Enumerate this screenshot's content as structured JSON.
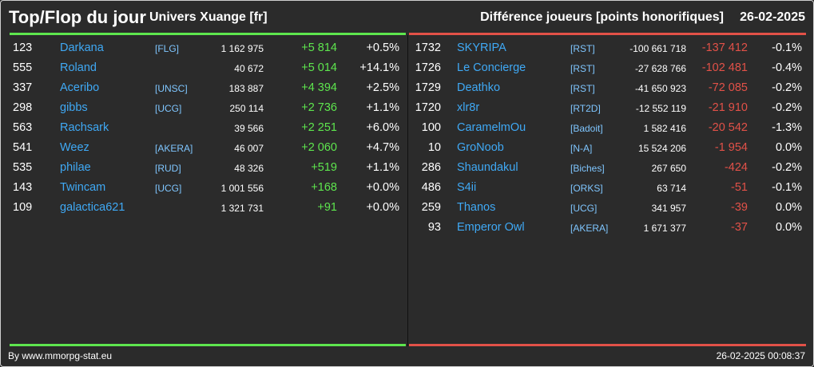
{
  "header": {
    "title": "Top/Flop du jour",
    "subtitle": "Univers Xuange [fr]",
    "metric": "Différence joueurs [points honorifiques]",
    "date": "26-02-2025"
  },
  "colors": {
    "positive": "#5ee64e",
    "negative": "#e25148",
    "name": "#3fa9f5"
  },
  "top": [
    {
      "rank": "123",
      "name": "Darkana",
      "alliance": "[FLG]",
      "points": "1 162 975",
      "delta": "+5 814",
      "pct": "+0.5%"
    },
    {
      "rank": "555",
      "name": "Roland",
      "alliance": "",
      "points": "40 672",
      "delta": "+5 014",
      "pct": "+14.1%"
    },
    {
      "rank": "337",
      "name": "Aceribo",
      "alliance": "[UNSC]",
      "points": "183 887",
      "delta": "+4 394",
      "pct": "+2.5%"
    },
    {
      "rank": "298",
      "name": "gibbs",
      "alliance": "[UCG]",
      "points": "250 114",
      "delta": "+2 736",
      "pct": "+1.1%"
    },
    {
      "rank": "563",
      "name": "Rachsark",
      "alliance": "",
      "points": "39 566",
      "delta": "+2 251",
      "pct": "+6.0%"
    },
    {
      "rank": "541",
      "name": "Weez",
      "alliance": "[AKERA]",
      "points": "46 007",
      "delta": "+2 060",
      "pct": "+4.7%"
    },
    {
      "rank": "535",
      "name": "philae",
      "alliance": "[RUD]",
      "points": "48 326",
      "delta": "+519",
      "pct": "+1.1%"
    },
    {
      "rank": "143",
      "name": "Twincam",
      "alliance": "[UCG]",
      "points": "1 001 556",
      "delta": "+168",
      "pct": "+0.0%"
    },
    {
      "rank": "109",
      "name": "galactica621",
      "alliance": "",
      "points": "1 321 731",
      "delta": "+91",
      "pct": "+0.0%"
    }
  ],
  "flop": [
    {
      "rank": "1732",
      "name": "SKYRIPA",
      "alliance": "[RST]",
      "points": "-100 661 718",
      "delta": "-137 412",
      "pct": "-0.1%"
    },
    {
      "rank": "1726",
      "name": "Le Concierge",
      "alliance": "[RST]",
      "points": "-27 628 766",
      "delta": "-102 481",
      "pct": "-0.4%"
    },
    {
      "rank": "1729",
      "name": "Deathko",
      "alliance": "[RST]",
      "points": "-41 650 923",
      "delta": "-72 085",
      "pct": "-0.2%"
    },
    {
      "rank": "1720",
      "name": "xlr8r",
      "alliance": "[RT2D]",
      "points": "-12 552 119",
      "delta": "-21 910",
      "pct": "-0.2%"
    },
    {
      "rank": "100",
      "name": "CaramelmOu",
      "alliance": "[Badoit]",
      "points": "1 582 416",
      "delta": "-20 542",
      "pct": "-1.3%"
    },
    {
      "rank": "10",
      "name": "GroNoob",
      "alliance": "[N-A]",
      "points": "15 524 206",
      "delta": "-1 954",
      "pct": "0.0%"
    },
    {
      "rank": "286",
      "name": "Shaundakul",
      "alliance": "[Biches]",
      "points": "267 650",
      "delta": "-424",
      "pct": "-0.2%"
    },
    {
      "rank": "486",
      "name": "S4ii",
      "alliance": "[ORKS]",
      "points": "63 714",
      "delta": "-51",
      "pct": "-0.1%"
    },
    {
      "rank": "259",
      "name": "Thanos",
      "alliance": "[UCG]",
      "points": "341 957",
      "delta": "-39",
      "pct": "0.0%"
    },
    {
      "rank": "93",
      "name": "Emperor Owl",
      "alliance": "[AKERA]",
      "points": "1 671 377",
      "delta": "-37",
      "pct": "0.0%"
    }
  ],
  "footer": {
    "source": "By www.mmorpg-stat.eu",
    "timestamp": "26-02-2025 00:08:37"
  }
}
